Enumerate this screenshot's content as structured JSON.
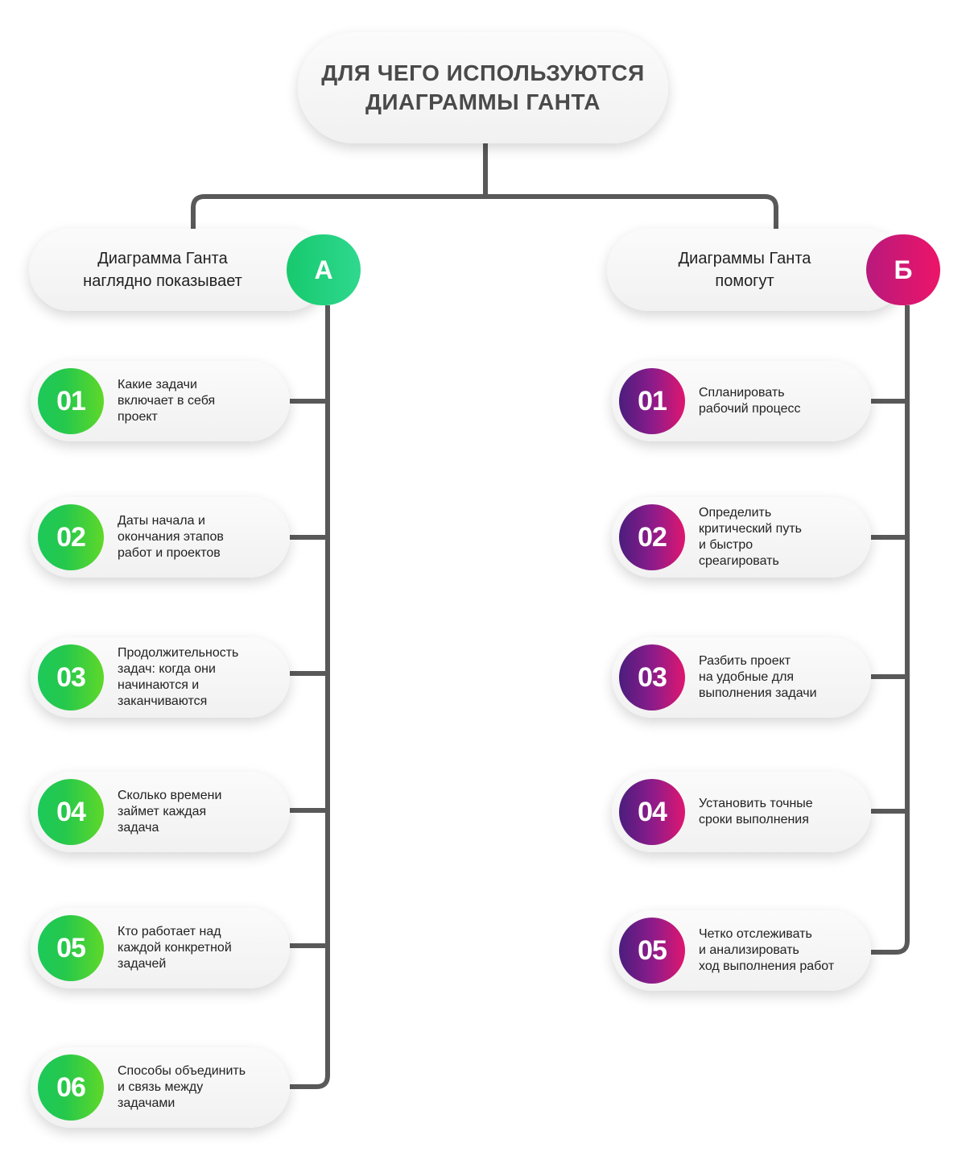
{
  "title": {
    "lines": [
      "ДЛЯ ЧЕГО ИСПОЛЬЗУЮТСЯ",
      "ДИАГРАММЫ ГАНТА"
    ]
  },
  "column_a": {
    "badge": "А",
    "header_lines": [
      "Диаграмма Ганта",
      "наглядно показывает"
    ],
    "accent_color": "#1fcf7f",
    "items": [
      {
        "num": "01",
        "lines": [
          "Какие задачи",
          "включает в себя",
          "проект"
        ]
      },
      {
        "num": "02",
        "lines": [
          "Даты начала и",
          "окончания этапов",
          "работ и проектов"
        ]
      },
      {
        "num": "03",
        "lines": [
          "Продолжительность",
          "задач: когда они",
          "начинаются и",
          "заканчиваются"
        ]
      },
      {
        "num": "04",
        "lines": [
          "Сколько времени",
          "займет каждая",
          "задача"
        ]
      },
      {
        "num": "05",
        "lines": [
          "Кто работает над",
          "каждой конкретной",
          "задачей"
        ]
      },
      {
        "num": "06",
        "lines": [
          "Способы объединить",
          "и связь между",
          "задачами"
        ]
      }
    ]
  },
  "column_b": {
    "badge": "Б",
    "header_lines": [
      "Диаграммы Ганта",
      "помогут"
    ],
    "accent_color": "#e0166f",
    "items": [
      {
        "num": "01",
        "lines": [
          "Спланировать",
          "рабочий процесс"
        ]
      },
      {
        "num": "02",
        "lines": [
          "Определить",
          "критический путь",
          "и быстро",
          "среагировать"
        ]
      },
      {
        "num": "03",
        "lines": [
          "Разбить проект",
          "на удобные для",
          "выполнения задачи"
        ]
      },
      {
        "num": "04",
        "lines": [
          "Установить точные",
          "сроки выполнения"
        ]
      },
      {
        "num": "05",
        "lines": [
          "Четко отслеживать",
          "и анализировать",
          "ход выполнения работ"
        ]
      }
    ]
  },
  "colors": {
    "connector": "#595959",
    "title_text": "#4a4a4a",
    "green_gradient": [
      "#1cc95a",
      "#5fd82a"
    ],
    "purple_gradient": [
      "#4b1d7e",
      "#de1670"
    ]
  }
}
